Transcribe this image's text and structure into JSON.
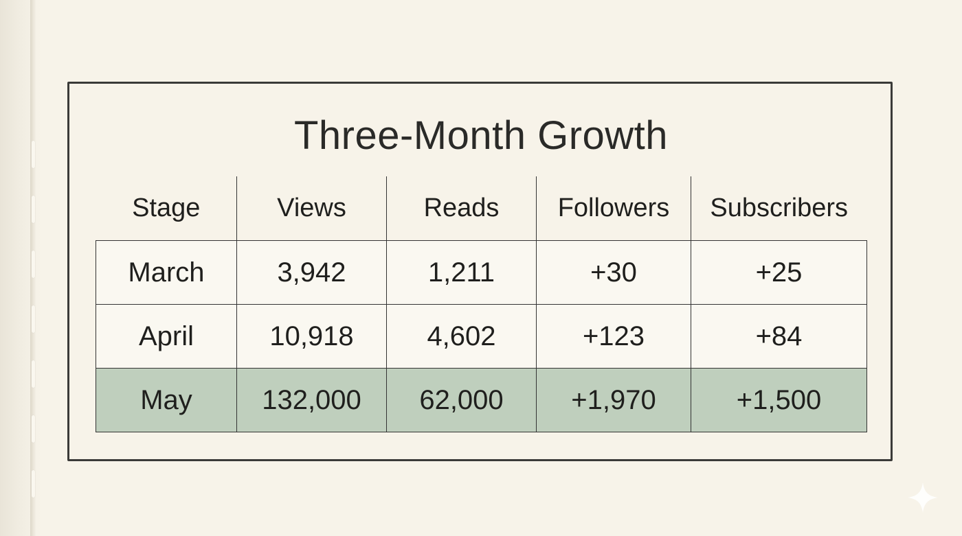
{
  "title": "Three-Month Growth",
  "table": {
    "headers": [
      "Stage",
      "Views",
      "Reads",
      "Followers",
      "Subscribers"
    ],
    "rows": [
      [
        "March",
        "3,942",
        "1,211",
        "+30",
        "+25"
      ],
      [
        "April",
        "10,918",
        "4,602",
        "+123",
        "+84"
      ],
      [
        "May",
        "132,000",
        "62,000",
        "+1,970",
        "+1,500"
      ]
    ],
    "highlighted_row": "May"
  },
  "colors": {
    "paper": "#f6f2e8",
    "border": "#3a3a38",
    "highlight": "#bfcfbd"
  },
  "icons": {
    "corner_mark": "sparkle-icon"
  }
}
